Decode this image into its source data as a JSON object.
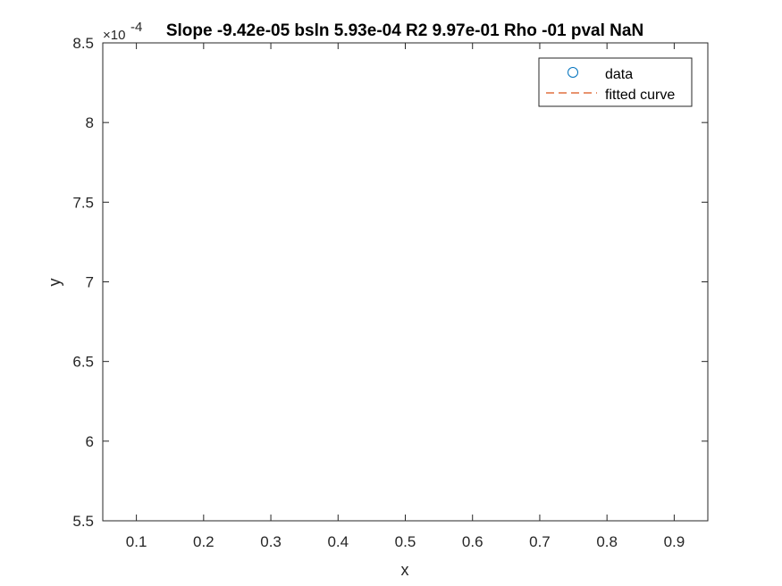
{
  "chart_data": {
    "type": "scatter",
    "title": "Slope -9.42e-05 bsln 5.93e-04 R2 9.97e-01 Rho -01 pval NaN",
    "xlabel": "x",
    "ylabel": "y",
    "xlim": [
      0.05,
      0.95
    ],
    "ylim": [
      5.5,
      8.5
    ],
    "y_exponent_label": "×10",
    "y_exponent": "-4",
    "x_ticks": [
      0.1,
      0.2,
      0.3,
      0.4,
      0.5,
      0.6,
      0.7,
      0.8,
      0.9
    ],
    "x_tick_labels": [
      "0.1",
      "0.2",
      "0.3",
      "0.4",
      "0.5",
      "0.6",
      "0.7",
      "0.8",
      "0.9"
    ],
    "y_ticks": [
      5.5,
      6,
      6.5,
      7,
      7.5,
      8,
      8.5
    ],
    "y_tick_labels": [
      "5.5",
      "6",
      "6.5",
      "7",
      "7.5",
      "8",
      "8.5"
    ],
    "grid": false,
    "legend_position": "top-right",
    "series": [
      {
        "name": "data",
        "marker": "circle",
        "color": "#0072BD",
        "x": [],
        "y": []
      },
      {
        "name": "fitted curve",
        "line_style": "dashed",
        "color": "#D95319",
        "x": [],
        "y": []
      }
    ]
  }
}
